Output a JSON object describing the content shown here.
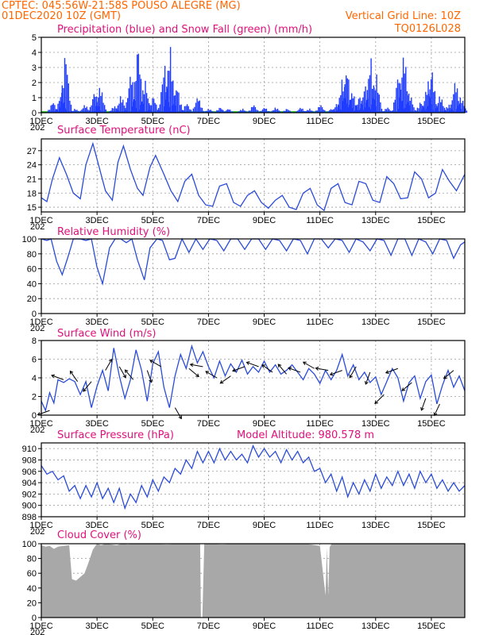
{
  "header": {
    "line1": "CPTEC:  045:56W-21:58S  POUSO ALEGRE (MG)",
    "line2": "01DEC2020 10Z (GMT)",
    "vgrid": "Vertical Grid Line: 10Z",
    "code": "TQ0126L028"
  },
  "colors": {
    "precip": "#1f3cff",
    "snow": "#00aa00",
    "line": "#2a4bd8",
    "cloud": "#a8a8a8",
    "title": "#e0107a",
    "header": "#ff6600"
  },
  "x_tick_labels": [
    "1DEC",
    "3DEC",
    "5DEC",
    "7DEC",
    "9DEC",
    "11DEC",
    "13DEC",
    "15DEC"
  ],
  "x_cut_label": "202",
  "chart_data": [
    {
      "id": "precip",
      "type": "bar",
      "title": "Precipitation (blue) and Snow Fall (green) (mm/h)",
      "ylim": [
        0,
        5
      ],
      "yticks": [
        0,
        1,
        2,
        3,
        4,
        5
      ],
      "x_range_days": [
        0,
        15.2
      ],
      "peaks": [
        {
          "day": 0.4,
          "value": 0.8
        },
        {
          "day": 0.7,
          "value": 1.5
        },
        {
          "day": 0.85,
          "value": 4.4
        },
        {
          "day": 1.2,
          "value": 0.3
        },
        {
          "day": 1.55,
          "value": 0.6
        },
        {
          "day": 1.9,
          "value": 1.6
        },
        {
          "day": 2.1,
          "value": 2.0
        },
        {
          "day": 2.6,
          "value": 0.5
        },
        {
          "day": 2.85,
          "value": 1.3
        },
        {
          "day": 3.2,
          "value": 3.0
        },
        {
          "day": 3.45,
          "value": 4.9
        },
        {
          "day": 3.7,
          "value": 2.4
        },
        {
          "day": 4.0,
          "value": 1.2
        },
        {
          "day": 4.4,
          "value": 3.5
        },
        {
          "day": 4.6,
          "value": 4.8
        },
        {
          "day": 4.85,
          "value": 2.0
        },
        {
          "day": 5.2,
          "value": 0.7
        },
        {
          "day": 5.6,
          "value": 1.2
        },
        {
          "day": 6.0,
          "value": 0.3
        },
        {
          "day": 6.4,
          "value": 0.4
        },
        {
          "day": 6.7,
          "value": 0.3
        },
        {
          "day": 7.2,
          "value": 0.3
        },
        {
          "day": 7.6,
          "value": 0.6
        },
        {
          "day": 8.0,
          "value": 0.4
        },
        {
          "day": 8.4,
          "value": 0.4
        },
        {
          "day": 8.8,
          "value": 0.3
        },
        {
          "day": 9.3,
          "value": 0.4
        },
        {
          "day": 9.6,
          "value": 0.3
        },
        {
          "day": 10.0,
          "value": 0.6
        },
        {
          "day": 10.4,
          "value": 0.3
        },
        {
          "day": 10.6,
          "value": 0.7
        },
        {
          "day": 10.8,
          "value": 2.6
        },
        {
          "day": 10.95,
          "value": 3.3
        },
        {
          "day": 11.15,
          "value": 1.6
        },
        {
          "day": 11.4,
          "value": 1.2
        },
        {
          "day": 11.6,
          "value": 2.0
        },
        {
          "day": 11.8,
          "value": 4.0
        },
        {
          "day": 12.0,
          "value": 2.8
        },
        {
          "day": 12.4,
          "value": 0.4
        },
        {
          "day": 12.8,
          "value": 2.9
        },
        {
          "day": 13.0,
          "value": 4.5
        },
        {
          "day": 13.2,
          "value": 1.5
        },
        {
          "day": 13.6,
          "value": 0.8
        },
        {
          "day": 13.85,
          "value": 2.3
        },
        {
          "day": 14.0,
          "value": 3.1
        },
        {
          "day": 14.3,
          "value": 1.3
        },
        {
          "day": 14.6,
          "value": 0.6
        },
        {
          "day": 14.85,
          "value": 2.4
        },
        {
          "day": 15.05,
          "value": 1.2
        }
      ]
    },
    {
      "id": "temp",
      "type": "line",
      "title": "Surface Temperature (nC)",
      "ylim": [
        14,
        29.5
      ],
      "yticks": [
        15,
        18,
        21,
        24,
        27
      ],
      "x": [
        0,
        0.2,
        0.4,
        0.65,
        0.9,
        1.15,
        1.4,
        1.6,
        1.85,
        2.1,
        2.3,
        2.55,
        2.75,
        2.95,
        3.2,
        3.45,
        3.65,
        3.9,
        4.1,
        4.4,
        4.65,
        4.9,
        5.15,
        5.4,
        5.65,
        5.9,
        6.15,
        6.4,
        6.65,
        6.9,
        7.15,
        7.4,
        7.65,
        7.9,
        8.15,
        8.4,
        8.65,
        8.9,
        9.15,
        9.4,
        9.65,
        9.9,
        10.15,
        10.4,
        10.65,
        10.9,
        11.15,
        11.4,
        11.65,
        11.9,
        12.15,
        12.4,
        12.65,
        12.9,
        13.15,
        13.4,
        13.65,
        13.9,
        14.15,
        14.4,
        14.65,
        14.9,
        15.2
      ],
      "y": [
        17,
        16.2,
        21,
        25.5,
        22,
        18,
        16.8,
        24,
        28.5,
        23,
        18.5,
        16.5,
        24.5,
        28,
        23,
        19,
        17.5,
        23.5,
        26,
        22,
        18.5,
        16.2,
        20.5,
        22,
        17.5,
        15.5,
        15.2,
        19.5,
        20,
        16,
        15.2,
        17.5,
        18.5,
        16,
        14.8,
        16.5,
        17.5,
        15,
        14.5,
        18,
        19,
        15.5,
        14.3,
        19,
        20,
        16,
        15.5,
        20.5,
        20,
        16.5,
        16,
        21.5,
        20,
        16.8,
        17,
        22.5,
        21,
        17,
        18,
        23,
        20.5,
        18.5,
        22
      ]
    },
    {
      "id": "rh",
      "type": "line",
      "title": "Relative Humidity (%)",
      "ylim": [
        0,
        100
      ],
      "yticks": [
        0,
        20,
        40,
        60,
        80,
        100
      ],
      "x": [
        0,
        0.2,
        0.35,
        0.55,
        0.75,
        0.95,
        1.15,
        1.4,
        1.6,
        1.8,
        2.0,
        2.2,
        2.45,
        2.65,
        2.85,
        3.05,
        3.25,
        3.45,
        3.7,
        3.9,
        4.15,
        4.35,
        4.6,
        4.8,
        5.05,
        5.3,
        5.55,
        5.8,
        6.05,
        6.3,
        6.55,
        6.8,
        7.05,
        7.3,
        7.55,
        7.8,
        8.05,
        8.3,
        8.55,
        8.8,
        9.05,
        9.3,
        9.55,
        9.8,
        10.05,
        10.3,
        10.55,
        10.8,
        11.05,
        11.3,
        11.55,
        11.8,
        12.05,
        12.3,
        12.55,
        12.8,
        13.05,
        13.3,
        13.55,
        13.8,
        14.05,
        14.3,
        14.55,
        14.8,
        15.05,
        15.2
      ],
      "y": [
        100,
        98,
        100,
        70,
        52,
        75,
        100,
        100,
        98,
        100,
        62,
        40,
        88,
        100,
        100,
        95,
        100,
        72,
        45,
        88,
        100,
        98,
        72,
        74,
        100,
        82,
        100,
        86,
        100,
        98,
        84,
        100,
        100,
        86,
        100,
        100,
        86,
        100,
        98,
        84,
        100,
        98,
        80,
        100,
        100,
        88,
        100,
        98,
        82,
        100,
        96,
        84,
        100,
        98,
        78,
        100,
        100,
        78,
        100,
        96,
        80,
        100,
        98,
        74,
        92,
        96
      ]
    },
    {
      "id": "wind",
      "type": "line",
      "title": "Surface Wind (m/s)",
      "ylim": [
        0,
        8
      ],
      "yticks": [
        0,
        2,
        4,
        6,
        8
      ],
      "x": [
        0,
        0.15,
        0.3,
        0.45,
        0.6,
        0.8,
        1.0,
        1.2,
        1.4,
        1.6,
        1.8,
        2.0,
        2.2,
        2.4,
        2.6,
        2.8,
        3.0,
        3.2,
        3.4,
        3.6,
        3.8,
        4.0,
        4.2,
        4.4,
        4.6,
        4.8,
        5.0,
        5.2,
        5.4,
        5.6,
        5.8,
        6.0,
        6.2,
        6.4,
        6.6,
        6.8,
        7.0,
        7.2,
        7.4,
        7.6,
        7.8,
        8.0,
        8.2,
        8.4,
        8.6,
        8.8,
        9.0,
        9.2,
        9.4,
        9.6,
        9.8,
        10.0,
        10.2,
        10.4,
        10.6,
        10.8,
        11.0,
        11.2,
        11.4,
        11.6,
        11.8,
        12.0,
        12.2,
        12.4,
        12.6,
        12.8,
        13.0,
        13.2,
        13.4,
        13.6,
        13.8,
        14.0,
        14.2,
        14.4,
        14.6,
        14.8,
        15.0,
        15.2
      ],
      "y": [
        1.5,
        0.5,
        2.4,
        1.3,
        3.8,
        3.5,
        3.9,
        3.6,
        2.2,
        3.6,
        0.8,
        3.1,
        4.8,
        2.6,
        7.2,
        4.2,
        1.8,
        3.8,
        7.0,
        4.8,
        1.5,
        5.5,
        6.8,
        3.0,
        0.8,
        4.2,
        6.5,
        5.0,
        7.4,
        5.6,
        6.8,
        5.2,
        4.0,
        5.8,
        4.2,
        5.5,
        4.6,
        5.9,
        4.4,
        5.2,
        4.6,
        5.8,
        4.6,
        5.4,
        4.4,
        4.8,
        5.4,
        4.6,
        3.8,
        5.0,
        4.4,
        3.4,
        4.8,
        3.8,
        4.8,
        6.5,
        4.2,
        5.4,
        3.8,
        4.6,
        3.5,
        4.1,
        2.2,
        3.6,
        5.0,
        4.0,
        1.5,
        3.5,
        4.2,
        1.8,
        3.6,
        4.3,
        1.2,
        3.2,
        4.8,
        3.0,
        4.2,
        2.6
      ]
    },
    {
      "id": "pressure",
      "type": "line",
      "title": "Surface Pressure (hPa)",
      "subtitle": "Model Altitude: 980.578  m",
      "ylim": [
        898,
        911
      ],
      "yticks": [
        898,
        900,
        902,
        904,
        906,
        908,
        910
      ],
      "x": [
        0,
        0.2,
        0.4,
        0.6,
        0.8,
        1.0,
        1.2,
        1.4,
        1.6,
        1.8,
        2.0,
        2.2,
        2.4,
        2.6,
        2.8,
        3.0,
        3.2,
        3.4,
        3.6,
        3.8,
        4.0,
        4.2,
        4.4,
        4.6,
        4.8,
        5.0,
        5.2,
        5.4,
        5.6,
        5.8,
        6.0,
        6.2,
        6.4,
        6.6,
        6.8,
        7.0,
        7.2,
        7.4,
        7.6,
        7.8,
        8.0,
        8.2,
        8.4,
        8.6,
        8.8,
        9.0,
        9.2,
        9.4,
        9.6,
        9.8,
        10.0,
        10.2,
        10.4,
        10.6,
        10.8,
        11.0,
        11.2,
        11.4,
        11.6,
        11.8,
        12.0,
        12.2,
        12.4,
        12.6,
        12.8,
        13.0,
        13.2,
        13.4,
        13.6,
        13.8,
        14.0,
        14.2,
        14.4,
        14.6,
        14.8,
        15.0,
        15.2
      ],
      "y": [
        907,
        905.5,
        906,
        904.5,
        905.2,
        902.5,
        903.5,
        901.2,
        903.5,
        901.5,
        904,
        901.2,
        903,
        900.5,
        903,
        899.5,
        902,
        900.5,
        903.5,
        901.5,
        904.5,
        902.5,
        905,
        904,
        906.5,
        905.5,
        908,
        906.5,
        909.5,
        907.5,
        909.5,
        907.5,
        910,
        908,
        909.5,
        908,
        909,
        907.5,
        910.5,
        908.5,
        910,
        908.5,
        909.5,
        907.5,
        909.8,
        908,
        909.5,
        907.5,
        908.5,
        906,
        906.5,
        904,
        905.5,
        902.5,
        905,
        901.5,
        904,
        902,
        904.5,
        902.5,
        905.5,
        903,
        905,
        903.5,
        906,
        903.5,
        905.5,
        903,
        906,
        904,
        905.5,
        903,
        904.5,
        902.5,
        904,
        902.5,
        903.5
      ]
    },
    {
      "id": "cloud",
      "type": "area",
      "title": "Cloud Cover (%)",
      "ylim": [
        0,
        100
      ],
      "yticks": [
        0,
        20,
        40,
        60,
        80,
        100
      ],
      "x": [
        0,
        0.15,
        0.3,
        0.45,
        0.6,
        0.8,
        1.0,
        1.1,
        1.25,
        1.4,
        1.55,
        1.7,
        1.85,
        2.0,
        2.15,
        2.3,
        2.5,
        2.7,
        2.9,
        3.1,
        3.3,
        3.6,
        4.0,
        4.5,
        5.0,
        5.5,
        5.7,
        5.73,
        5.78,
        5.85,
        6.0,
        6.5,
        7.0,
        7.5,
        8.0,
        8.5,
        9.0,
        9.5,
        10.0,
        10.2,
        10.25,
        10.3,
        10.35,
        10.42,
        10.6,
        11.0,
        11.5,
        12.0,
        12.5,
        13.0,
        13.5,
        14.0,
        14.5,
        15.0,
        15.2
      ],
      "y": [
        98,
        96,
        97,
        93,
        96,
        97,
        98,
        52,
        50,
        55,
        60,
        75,
        92,
        100,
        98,
        100,
        99,
        98,
        100,
        99,
        100,
        100,
        100,
        99,
        100,
        100,
        100,
        0,
        0,
        100,
        100,
        99,
        100,
        100,
        100,
        100,
        100,
        100,
        97,
        30,
        95,
        30,
        95,
        100,
        100,
        100,
        100,
        100,
        100,
        100,
        100,
        100,
        100,
        100,
        100
      ]
    }
  ]
}
